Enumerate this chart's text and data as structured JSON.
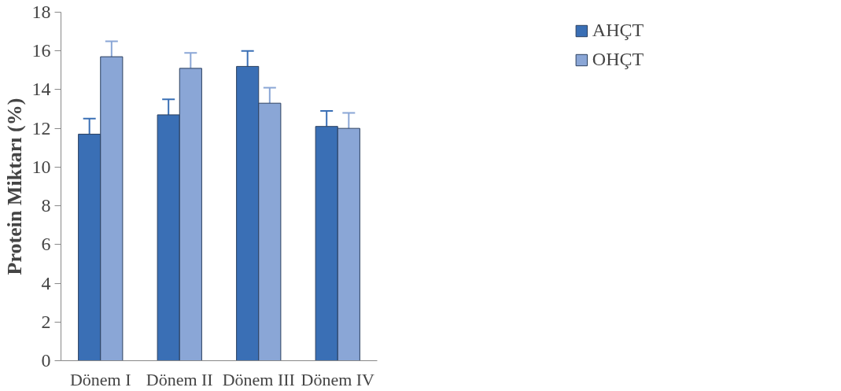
{
  "chart_data": {
    "type": "bar",
    "ylabel": "Protein Miktarı (%)",
    "categories": [
      "Dönem I",
      "Dönem II",
      "Dönem III",
      "Dönem IV"
    ],
    "series": [
      {
        "name": "AHÇT",
        "color": "#3a6fb5",
        "values": [
          11.7,
          12.7,
          15.2,
          12.1
        ],
        "errors": [
          [
            11.7,
            12.5
          ],
          [
            12.7,
            13.5
          ],
          [
            15.2,
            16.0
          ],
          [
            12.1,
            12.9
          ]
        ]
      },
      {
        "name": "OHÇT",
        "color": "#8aa6d6",
        "values": [
          15.7,
          15.1,
          13.3,
          12.0
        ],
        "errors": [
          [
            15.7,
            16.5
          ],
          [
            15.1,
            15.9
          ],
          [
            13.3,
            14.1
          ],
          [
            12.0,
            12.8
          ]
        ]
      }
    ],
    "ylim": [
      0,
      18
    ],
    "yticks": [
      0,
      2,
      4,
      6,
      8,
      10,
      12,
      14,
      16,
      18
    ],
    "grid": false,
    "legend": "top right"
  }
}
